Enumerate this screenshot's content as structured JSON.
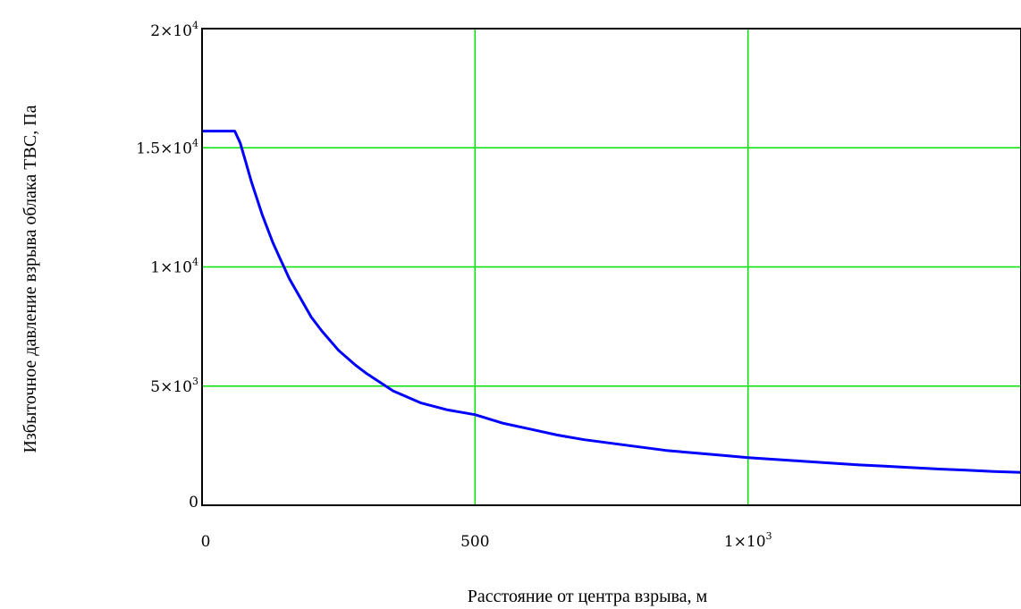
{
  "chart_data": {
    "type": "line",
    "title": "",
    "xlabel": "Расстояние от центра взрыва, м",
    "ylabel": "Избыточное давление взрыва облака ТВС, Па",
    "xlim": [
      0,
      1500
    ],
    "ylim": [
      0,
      20000
    ],
    "grid": true,
    "x_ticks": [
      {
        "value": 0,
        "mantissa": "0",
        "exponent": ""
      },
      {
        "value": 500,
        "mantissa": "500",
        "exponent": ""
      },
      {
        "value": 1000,
        "mantissa": "1×10",
        "exponent": "3"
      }
    ],
    "y_ticks": [
      {
        "value": 0,
        "mantissa": "0",
        "exponent": ""
      },
      {
        "value": 5000,
        "mantissa": "5×10",
        "exponent": "3"
      },
      {
        "value": 10000,
        "mantissa": "1×10",
        "exponent": "4"
      },
      {
        "value": 15000,
        "mantissa": "1.5×10",
        "exponent": "4"
      },
      {
        "value": 20000,
        "mantissa": "2×10",
        "exponent": "4"
      }
    ],
    "colors": {
      "line": "#0000ff",
      "grid": "#00e000",
      "frame": "#000000"
    },
    "series": [
      {
        "x": [
          0,
          30,
          60,
          70,
          80,
          90,
          100,
          110,
          120,
          130,
          140,
          150,
          160,
          180,
          200,
          220,
          250,
          280,
          300,
          350,
          400,
          450,
          500,
          550,
          600,
          650,
          700,
          750,
          800,
          850,
          900,
          950,
          1000,
          1050,
          1100,
          1150,
          1200,
          1250,
          1300,
          1350,
          1400,
          1450,
          1500
        ],
        "y": [
          15700,
          15700,
          15700,
          15200,
          14400,
          13600,
          12900,
          12200,
          11600,
          11000,
          10500,
          10000,
          9500,
          8700,
          7900,
          7300,
          6500,
          5900,
          5550,
          4800,
          4300,
          4000,
          3800,
          3450,
          3200,
          2950,
          2750,
          2600,
          2450,
          2300,
          2200,
          2100,
          2000,
          1920,
          1850,
          1770,
          1700,
          1640,
          1580,
          1520,
          1470,
          1420,
          1380
        ]
      }
    ]
  }
}
